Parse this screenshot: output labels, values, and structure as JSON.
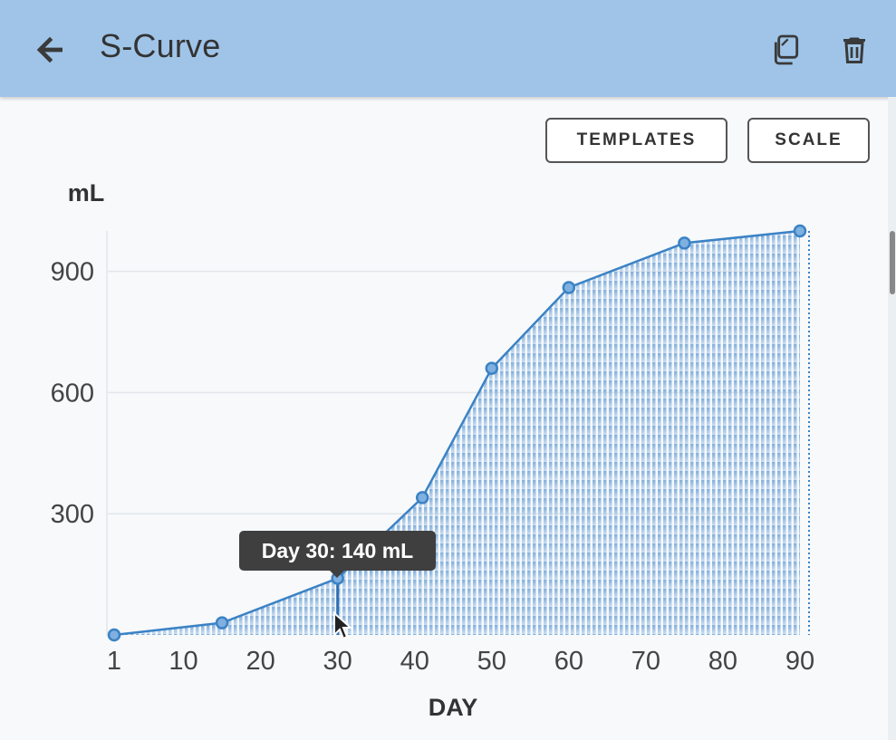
{
  "app_bar": {
    "title": "S-Curve",
    "back_icon": "arrow-left-icon",
    "actions": [
      {
        "name": "copy",
        "icon": "copy-icon"
      },
      {
        "name": "delete",
        "icon": "trash-icon"
      }
    ],
    "background_color": "#9fc4e8"
  },
  "toolbar": {
    "templates_label": "TEMPLATES",
    "scale_label": "SCALE"
  },
  "tooltip": {
    "text": "Day 30: 140 mL"
  },
  "chart_data": {
    "type": "area",
    "xlabel": "DAY",
    "ylabel": "mL",
    "x_ticks": [
      1,
      10,
      20,
      30,
      40,
      50,
      60,
      70,
      80,
      90
    ],
    "y_ticks": [
      300,
      600,
      900
    ],
    "xlim": [
      1,
      90
    ],
    "ylim": [
      0,
      1000
    ],
    "grid": true,
    "series_color": "#3b82c4",
    "points": [
      {
        "x": 1,
        "y": 0
      },
      {
        "x": 15,
        "y": 30
      },
      {
        "x": 30,
        "y": 140
      },
      {
        "x": 41,
        "y": 340
      },
      {
        "x": 50,
        "y": 660
      },
      {
        "x": 60,
        "y": 860
      },
      {
        "x": 75,
        "y": 970
      },
      {
        "x": 90,
        "y": 1000
      }
    ],
    "highlighted": {
      "x": 30,
      "y": 140
    }
  }
}
